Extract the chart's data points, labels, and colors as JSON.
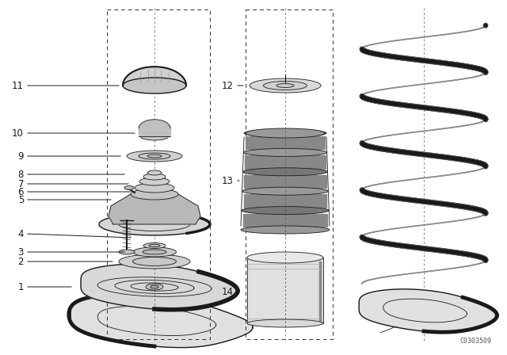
{
  "background_color": "#ffffff",
  "line_color": "#000000",
  "figure_width": 6.4,
  "figure_height": 4.48,
  "dpi": 100,
  "watermark": "C0303509"
}
